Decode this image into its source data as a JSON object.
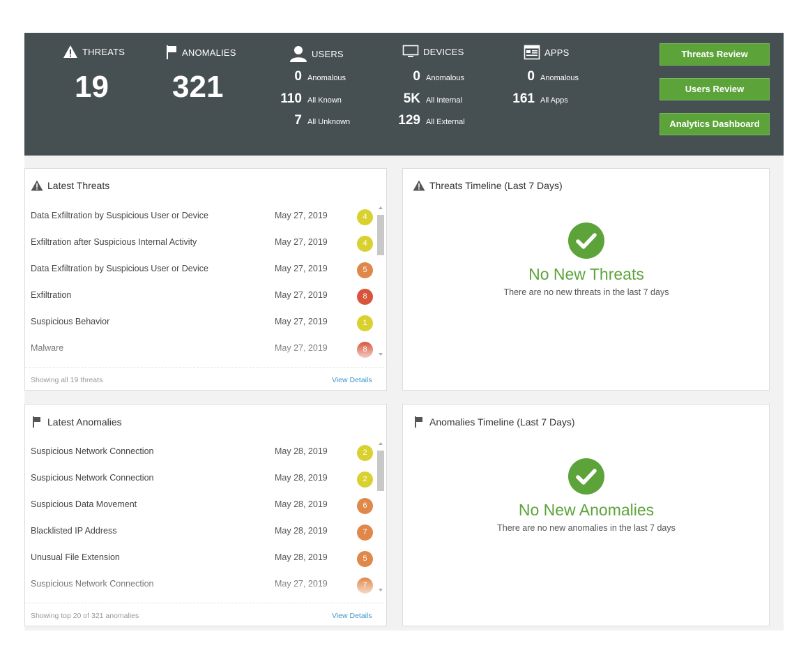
{
  "colors": {
    "header_bg": "#464f51",
    "accent_green": "#5ca33a",
    "link_blue": "#3a97c9",
    "badge_yellow": "#d9d130",
    "badge_orange": "#e0874a",
    "badge_red": "#d8553c"
  },
  "header": {
    "threats": {
      "label": "THREATS",
      "value": "19",
      "icon": "warning-icon"
    },
    "anomalies": {
      "label": "ANOMALIES",
      "value": "321",
      "icon": "flag-icon"
    },
    "users": {
      "label": "USERS",
      "icon": "user-icon",
      "stats": [
        {
          "num": "0",
          "text": "Anomalous"
        },
        {
          "num": "110",
          "text": "All Known"
        },
        {
          "num": "7",
          "text": "All Unknown"
        }
      ]
    },
    "devices": {
      "label": "DEVICES",
      "icon": "monitor-icon",
      "stats": [
        {
          "num": "0",
          "text": "Anomalous"
        },
        {
          "num": "5K",
          "text": "All Internal"
        },
        {
          "num": "129",
          "text": "All External"
        }
      ]
    },
    "apps": {
      "label": "APPS",
      "icon": "app-window-icon",
      "stats": [
        {
          "num": "0",
          "text": "Anomalous"
        },
        {
          "num": "161",
          "text": "All Apps"
        }
      ]
    },
    "buttons": {
      "threats_review": "Threats Review",
      "users_review": "Users Review",
      "analytics_dashboard": "Analytics Dashboard"
    }
  },
  "latest_threats": {
    "title": "Latest Threats",
    "items": [
      {
        "name": "Data Exfiltration by Suspicious User or Device",
        "date": "May 27, 2019",
        "score": "4",
        "level": "yellow"
      },
      {
        "name": "Exfiltration after Suspicious Internal Activity",
        "date": "May 27, 2019",
        "score": "4",
        "level": "yellow"
      },
      {
        "name": "Data Exfiltration by Suspicious User or Device",
        "date": "May 27, 2019",
        "score": "5",
        "level": "orange"
      },
      {
        "name": "Exfiltration",
        "date": "May 27, 2019",
        "score": "8",
        "level": "red"
      },
      {
        "name": "Suspicious Behavior",
        "date": "May 27, 2019",
        "score": "1",
        "level": "yellow"
      },
      {
        "name": "Malware",
        "date": "May 27, 2019",
        "score": "8",
        "level": "red"
      }
    ],
    "footer": "Showing all 19 threats",
    "link": "View Details"
  },
  "latest_anomalies": {
    "title": "Latest Anomalies",
    "items": [
      {
        "name": "Suspicious Network Connection",
        "date": "May 28, 2019",
        "score": "2",
        "level": "yellow"
      },
      {
        "name": "Suspicious Network Connection",
        "date": "May 28, 2019",
        "score": "2",
        "level": "yellow"
      },
      {
        "name": "Suspicious Data Movement",
        "date": "May 28, 2019",
        "score": "6",
        "level": "orange"
      },
      {
        "name": "Blacklisted IP Address",
        "date": "May 28, 2019",
        "score": "7",
        "level": "orange"
      },
      {
        "name": "Unusual File Extension",
        "date": "May 28, 2019",
        "score": "5",
        "level": "orange"
      },
      {
        "name": "Suspicious Network Connection",
        "date": "May 27, 2019",
        "score": "7",
        "level": "orange"
      }
    ],
    "footer": "Showing top 20 of 321 anomalies",
    "link": "View Details"
  },
  "threats_timeline": {
    "title": "Threats Timeline (Last 7 Days)",
    "status": "No New Threats",
    "subtitle": "There are no new threats in the last 7 days",
    "icon": "check-circle-icon"
  },
  "anomalies_timeline": {
    "title": "Anomalies Timeline (Last 7 Days)",
    "status": "No New Anomalies",
    "subtitle": "There are no new anomalies in the last 7 days",
    "icon": "check-circle-icon"
  }
}
